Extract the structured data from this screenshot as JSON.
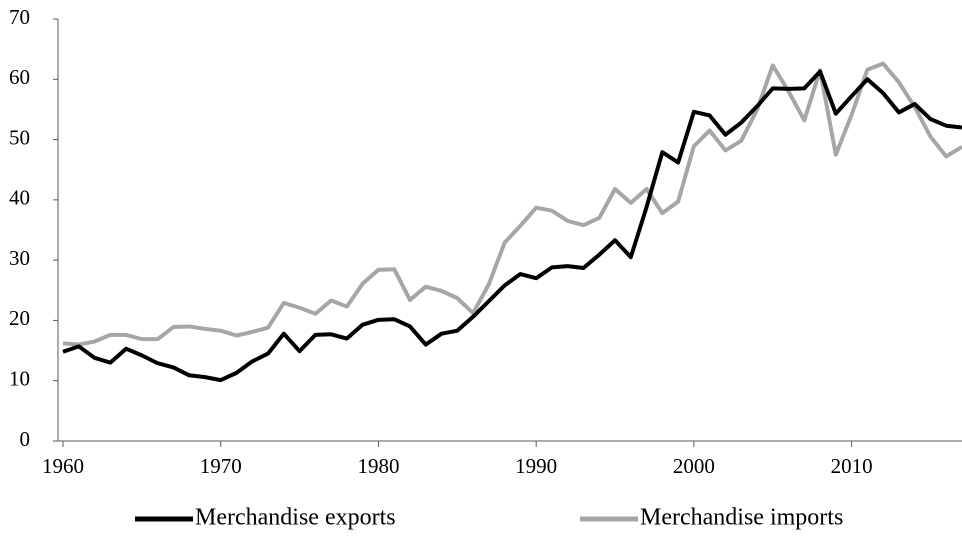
{
  "chart_data": {
    "type": "line",
    "x": [
      1960,
      1961,
      1962,
      1963,
      1964,
      1965,
      1966,
      1967,
      1968,
      1969,
      1970,
      1971,
      1972,
      1973,
      1974,
      1975,
      1976,
      1977,
      1978,
      1979,
      1980,
      1981,
      1982,
      1983,
      1984,
      1985,
      1986,
      1987,
      1988,
      1989,
      1990,
      1991,
      1992,
      1993,
      1994,
      1995,
      1996,
      1997,
      1998,
      1999,
      2000,
      2001,
      2002,
      2003,
      2004,
      2005,
      2006,
      2007,
      2008,
      2009,
      2010,
      2011,
      2012,
      2013,
      2014,
      2015,
      2016,
      2017
    ],
    "series": [
      {
        "name": "Merchandise exports",
        "color": "#000000",
        "values": [
          14.8,
          15.7,
          13.8,
          13.0,
          15.3,
          14.2,
          12.9,
          12.2,
          10.9,
          10.6,
          10.1,
          11.3,
          13.2,
          14.5,
          17.8,
          14.9,
          17.6,
          17.7,
          17.0,
          19.3,
          20.1,
          20.2,
          19.0,
          16.0,
          17.8,
          18.3,
          20.6,
          23.2,
          25.8,
          27.7,
          27.0,
          28.8,
          29.0,
          28.7,
          30.9,
          33.3,
          30.5,
          38.8,
          47.9,
          46.2,
          54.6,
          54.0,
          50.8,
          52.8,
          55.5,
          58.5,
          58.4,
          58.5,
          61.3,
          54.3,
          57.2,
          60.0,
          57.7,
          54.5,
          55.9,
          53.4,
          52.3,
          52.0
        ]
      },
      {
        "name": "Merchandise imports",
        "color": "#a6a6a6",
        "values": [
          16.2,
          16.0,
          16.5,
          17.6,
          17.6,
          16.9,
          16.9,
          18.9,
          19.0,
          18.6,
          18.3,
          17.5,
          18.1,
          18.8,
          22.9,
          22.1,
          21.1,
          23.3,
          22.3,
          26.1,
          28.4,
          28.5,
          23.4,
          25.6,
          24.9,
          23.7,
          21.2,
          26.0,
          32.9,
          35.7,
          38.7,
          38.2,
          36.5,
          35.8,
          37.0,
          41.8,
          39.5,
          41.8,
          37.8,
          39.7,
          48.9,
          51.5,
          48.2,
          49.8,
          54.9,
          62.3,
          58.0,
          53.2,
          61.5,
          47.5,
          54.1,
          61.6,
          62.6,
          59.5,
          55.4,
          50.5,
          47.2,
          48.8
        ]
      }
    ],
    "xlim": [
      1960,
      2017
    ],
    "xticks": [
      1960,
      1970,
      1980,
      1990,
      2000,
      2010
    ],
    "ylim": [
      0,
      70
    ],
    "yticks": [
      0,
      10,
      20,
      30,
      40,
      50,
      60,
      70
    ],
    "legend": "bottom"
  }
}
